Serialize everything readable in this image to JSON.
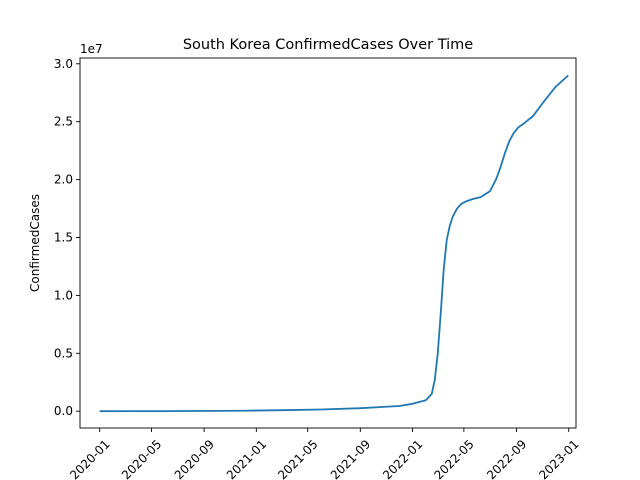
{
  "chart_data": {
    "type": "line",
    "title": "South Korea  ConfirmedCases Over Time",
    "xlabel": "",
    "ylabel": "ConfirmedCases",
    "y_offset_label": "1e7",
    "y_scale": 10000000,
    "xlim": [
      "2019-11-16",
      "2023-01-18"
    ],
    "ylim": [
      -1450000,
      30500000
    ],
    "x_ticks": [
      "2020-01",
      "2020-05",
      "2020-09",
      "2021-01",
      "2021-05",
      "2021-09",
      "2022-01",
      "2022-05",
      "2022-09",
      "2023-01"
    ],
    "y_ticks": [
      0,
      5000000,
      10000000,
      15000000,
      20000000,
      25000000,
      30000000
    ],
    "y_tick_labels": [
      "0.0",
      "0.5",
      "1.0",
      "1.5",
      "2.0",
      "2.5",
      "3.0"
    ],
    "grid": false,
    "series": [
      {
        "color": "#1f77b4",
        "x": [
          "2020-01-01",
          "2020-06-01",
          "2020-12-01",
          "2021-03-01",
          "2021-06-01",
          "2021-09-01",
          "2021-12-01",
          "2022-01-01",
          "2022-02-01",
          "2022-02-15",
          "2022-02-22",
          "2022-03-01",
          "2022-03-08",
          "2022-03-15",
          "2022-03-22",
          "2022-03-29",
          "2022-04-05",
          "2022-04-15",
          "2022-04-25",
          "2022-05-05",
          "2022-05-20",
          "2022-06-10",
          "2022-07-01",
          "2022-07-15",
          "2022-07-25",
          "2022-08-05",
          "2022-08-15",
          "2022-08-25",
          "2022-09-05",
          "2022-09-20",
          "2022-10-10",
          "2022-11-01",
          "2022-12-01",
          "2022-12-31"
        ],
        "y": [
          0,
          10000,
          40000,
          90000,
          150000,
          260000,
          450000,
          640000,
          950000,
          1500000,
          2700000,
          5000000,
          8500000,
          12300000,
          14800000,
          16000000,
          16800000,
          17500000,
          17900000,
          18100000,
          18300000,
          18500000,
          19000000,
          20000000,
          21000000,
          22300000,
          23300000,
          24000000,
          24500000,
          24900000,
          25500000,
          26600000,
          28000000,
          29000000
        ]
      }
    ]
  }
}
